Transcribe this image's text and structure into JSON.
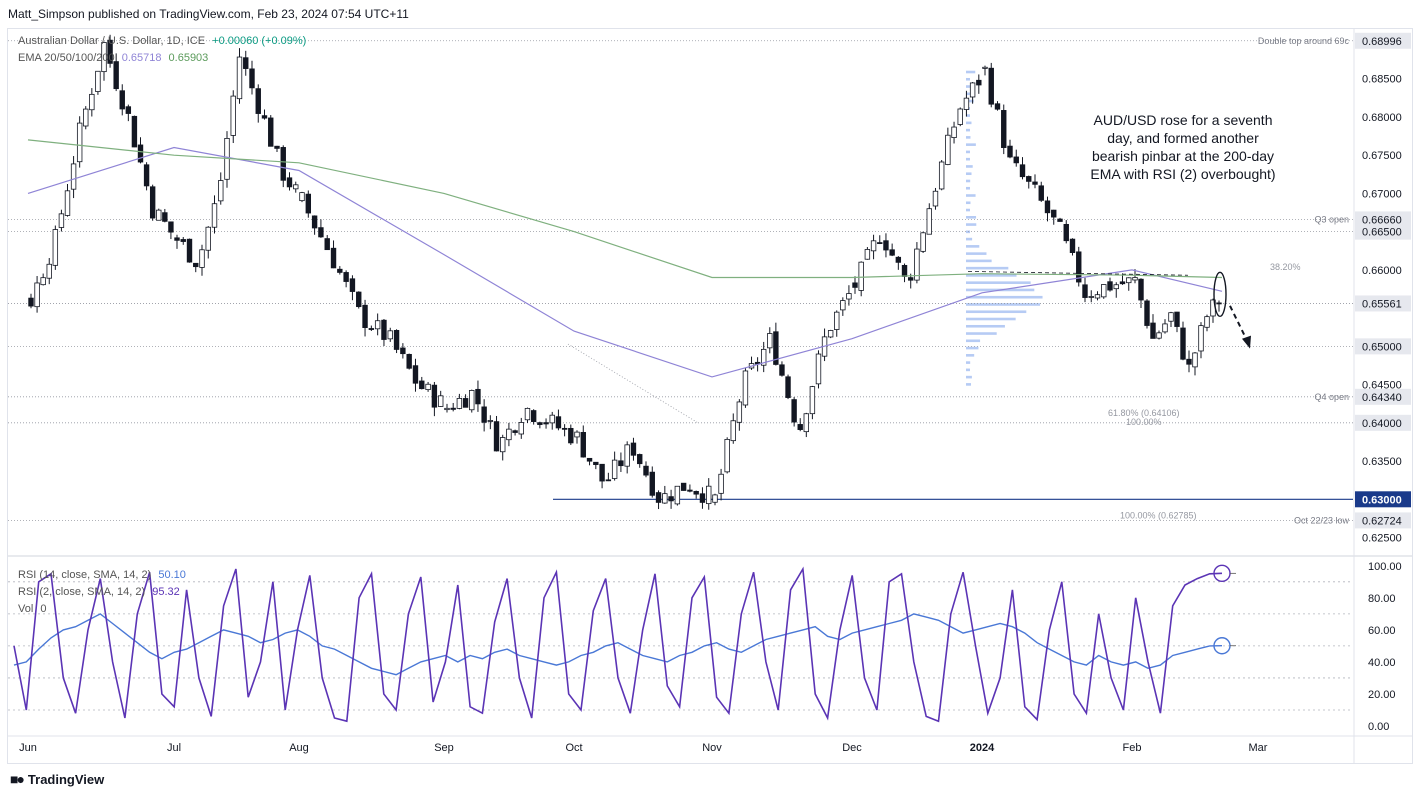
{
  "publish_line": "Matt_Simpson published on TradingView.com, Feb 23, 2024 07:54 UTC+11",
  "brand": "TradingView",
  "colors": {
    "up": "#ffffff",
    "down": "#131722",
    "ema50": "#8f84d6",
    "ema200": "#7fb07f",
    "rsi14": "#4a78d6",
    "rsi2": "#5b34b5",
    "support": "#1a3a8a",
    "profile": "#9db9f0"
  },
  "chart_data": [
    {
      "type": "candlestick",
      "title": "Australian Dollar / U.S. Dollar, 1D, ICE",
      "change_text": "+0.00060 (+0.09%)",
      "indicator_label": "EMA 20/50/100/200",
      "ema_values": [
        "0.65718",
        "0.65903"
      ],
      "annotation": "AUD/USD rose for a seventh day, and formed another bearish pinbar at the 200-day EMA with RSI (2) overbought)",
      "x_labels": [
        "Jun",
        "Jul",
        "Aug",
        "Sep",
        "Oct",
        "Nov",
        "Dec",
        "2024",
        "Feb",
        "Mar"
      ],
      "y_ticks": [
        "0.68500",
        "0.68000",
        "0.67500",
        "0.67000",
        "0.66500",
        "0.66000",
        "0.65561",
        "0.65000",
        "0.64500",
        "0.64000",
        "0.63500",
        "0.63000",
        "0.62500"
      ],
      "ylim": [
        0.6235,
        0.6915
      ],
      "levels": [
        {
          "label": "Double top around 69c",
          "price": "0.68996"
        },
        {
          "label": "Q3 open",
          "price": "0.66660"
        },
        {
          "label": "",
          "price": "0.66500"
        },
        {
          "label": "",
          "price": "0.65561"
        },
        {
          "label": "",
          "price": "0.65000"
        },
        {
          "label": "Q4 open",
          "price": "0.64340"
        },
        {
          "label": "",
          "price": "0.64000"
        },
        {
          "label": "",
          "price": "0.63000"
        },
        {
          "label": "Oct 22/23 low",
          "price": "0.62724"
        }
      ],
      "fib": [
        "38.20%",
        "61.80% (0.64106)",
        "100.00%",
        "100.00% (0.62785)"
      ],
      "segments": [
        {
          "from": "Jun",
          "to": "Jul",
          "start": 0.656,
          "waypoints": [
            0.664,
            0.678,
            0.6895,
            0.68,
            0.668,
            0.664
          ]
        },
        {
          "from": "Jul",
          "to": "Aug",
          "start": 0.664,
          "waypoints": [
            0.661,
            0.67,
            0.688,
            0.681,
            0.673,
            0.669
          ]
        },
        {
          "from": "Aug",
          "to": "Sep",
          "start": 0.669,
          "waypoints": [
            0.662,
            0.654,
            0.651,
            0.645,
            0.642
          ]
        },
        {
          "from": "Sep",
          "to": "Oct",
          "start": 0.642,
          "waypoints": [
            0.644,
            0.637,
            0.642,
            0.64,
            0.638
          ]
        },
        {
          "from": "Oct",
          "to": "Nov",
          "start": 0.638,
          "waypoints": [
            0.632,
            0.637,
            0.63,
            0.632,
            0.63
          ]
        },
        {
          "from": "Nov",
          "to": "Dec",
          "start": 0.63,
          "waypoints": [
            0.645,
            0.651,
            0.639,
            0.652,
            0.658
          ]
        },
        {
          "from": "Dec",
          "to": "2024",
          "start": 0.658,
          "waypoints": [
            0.665,
            0.658,
            0.67,
            0.681,
            0.686
          ]
        },
        {
          "from": "2024",
          "to": "Feb",
          "start": 0.686,
          "waypoints": [
            0.674,
            0.67,
            0.665,
            0.657,
            0.658,
            0.6585
          ]
        },
        {
          "from": "Feb",
          "to": "Feb 23",
          "start": 0.6585,
          "waypoints": [
            0.651,
            0.654,
            0.647,
            0.654,
            0.657
          ]
        }
      ],
      "ema_paths": [
        {
          "name": "EMA 50",
          "waypoints": [
            [
              "Jun",
              0.67
            ],
            [
              "Jul",
              0.676
            ],
            [
              "Aug",
              0.673
            ],
            [
              "Sep",
              0.662
            ],
            [
              "Oct",
              0.652
            ],
            [
              "Nov",
              0.646
            ],
            [
              "Dec",
              0.651
            ],
            [
              "2024",
              0.657
            ],
            [
              "Feb",
              0.66
            ],
            [
              "Feb 23",
              0.6572
            ]
          ]
        },
        {
          "name": "EMA 200",
          "waypoints": [
            [
              "Jun",
              0.677
            ],
            [
              "Jul",
              0.675
            ],
            [
              "Aug",
              0.674
            ],
            [
              "Sep",
              0.67
            ],
            [
              "Oct",
              0.665
            ],
            [
              "Nov",
              0.659
            ],
            [
              "Dec",
              0.659
            ],
            [
              "2024",
              0.6595
            ],
            [
              "Feb",
              0.6593
            ],
            [
              "Feb 23",
              0.659
            ]
          ]
        }
      ]
    },
    {
      "type": "line",
      "series": [
        {
          "name": "RSI (14, close, SMA, 14, 2)",
          "value_text": "50.10",
          "values": [
            38,
            40,
            48,
            55,
            60,
            62,
            66,
            70,
            64,
            58,
            52,
            46,
            42,
            46,
            48,
            52,
            56,
            60,
            58,
            56,
            52,
            54,
            58,
            60,
            56,
            50,
            48,
            44,
            40,
            36,
            34,
            32,
            36,
            40,
            42,
            44,
            40,
            44,
            42,
            46,
            48,
            44,
            42,
            40,
            38,
            40,
            44,
            46,
            50,
            52,
            48,
            44,
            42,
            40,
            44,
            46,
            50,
            52,
            48,
            46,
            50,
            54,
            56,
            58,
            60,
            62,
            56,
            54,
            58,
            60,
            62,
            64,
            66,
            70,
            68,
            66,
            62,
            58,
            60,
            62,
            64,
            62,
            58,
            52,
            48,
            44,
            40,
            38,
            44,
            40,
            38,
            40,
            36,
            38,
            44,
            46,
            48,
            50,
            50.1
          ]
        },
        {
          "name": "RSI (2, close, SMA, 14, 2)",
          "value_text": "95.32",
          "values": [
            50,
            10,
            90,
            95,
            30,
            8,
            60,
            92,
            40,
            5,
            70,
            96,
            20,
            12,
            85,
            30,
            6,
            75,
            98,
            18,
            40,
            90,
            10,
            60,
            94,
            30,
            5,
            3,
            80,
            95,
            20,
            10,
            70,
            93,
            15,
            40,
            88,
            12,
            8,
            65,
            92,
            30,
            5,
            80,
            96,
            20,
            10,
            72,
            92,
            30,
            8,
            60,
            95,
            25,
            12,
            80,
            93,
            18,
            8,
            70,
            96,
            40,
            10,
            85,
            98,
            20,
            5,
            60,
            94,
            30,
            10,
            90,
            95,
            40,
            6,
            3,
            70,
            96,
            50,
            8,
            30,
            85,
            12,
            4,
            60,
            90,
            20,
            8,
            70,
            30,
            10,
            80,
            40,
            8,
            75,
            88,
            92,
            95,
            95.32
          ]
        }
      ],
      "extra_label": "Vol",
      "extra_value": "0",
      "y_ticks": [
        "100.00",
        "80.00",
        "60.00",
        "40.00",
        "20.00",
        "0.00"
      ],
      "ylim": [
        -5,
        103
      ]
    }
  ]
}
